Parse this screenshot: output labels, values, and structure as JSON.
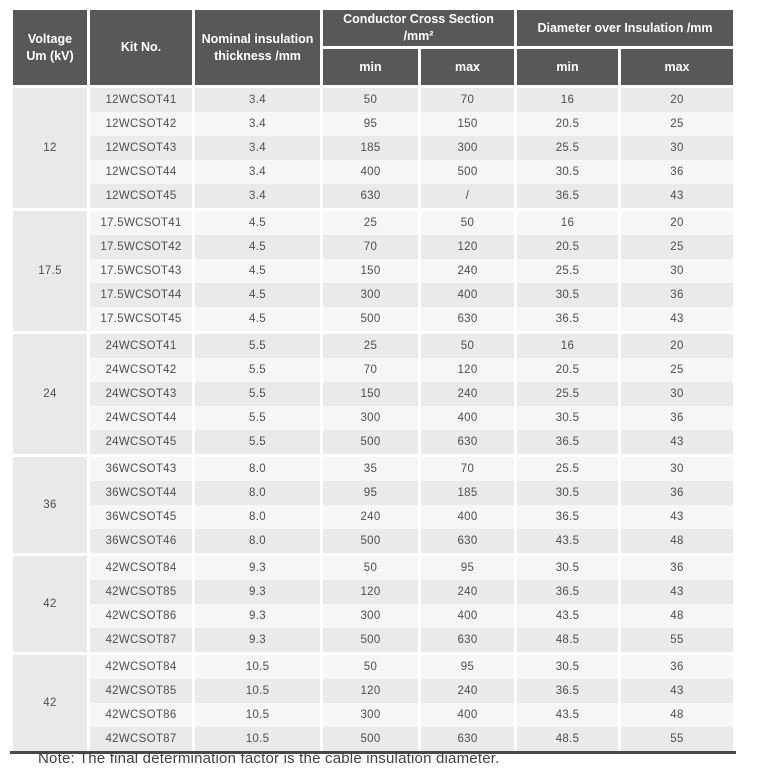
{
  "table": {
    "headers": {
      "voltage": "Voltage\nUm (kV)",
      "kit": "Kit No.",
      "thickness": "Nominal insulation\nthickness /mm",
      "conductor_cross_section": "Conductor Cross Section /mm²",
      "diameter_over_insulation": "Diameter over Insulation /mm",
      "min": "min",
      "max": "max"
    },
    "groups": [
      {
        "voltage": "12",
        "rows": [
          {
            "kit": "12WCSOT41",
            "thickness": "3.4",
            "ccs_min": "50",
            "ccs_max": "70",
            "doi_min": "16",
            "doi_max": "20"
          },
          {
            "kit": "12WCSOT42",
            "thickness": "3.4",
            "ccs_min": "95",
            "ccs_max": "150",
            "doi_min": "20.5",
            "doi_max": "25"
          },
          {
            "kit": "12WCSOT43",
            "thickness": "3.4",
            "ccs_min": "185",
            "ccs_max": "300",
            "doi_min": "25.5",
            "doi_max": "30"
          },
          {
            "kit": "12WCSOT44",
            "thickness": "3.4",
            "ccs_min": "400",
            "ccs_max": "500",
            "doi_min": "30.5",
            "doi_max": "36"
          },
          {
            "kit": "12WCSOT45",
            "thickness": "3.4",
            "ccs_min": "630",
            "ccs_max": "/",
            "doi_min": "36.5",
            "doi_max": "43"
          }
        ]
      },
      {
        "voltage": "17.5",
        "rows": [
          {
            "kit": "17.5WCSOT41",
            "thickness": "4.5",
            "ccs_min": "25",
            "ccs_max": "50",
            "doi_min": "16",
            "doi_max": "20"
          },
          {
            "kit": "17.5WCSOT42",
            "thickness": "4.5",
            "ccs_min": "70",
            "ccs_max": "120",
            "doi_min": "20.5",
            "doi_max": "25"
          },
          {
            "kit": "17.5WCSOT43",
            "thickness": "4.5",
            "ccs_min": "150",
            "ccs_max": "240",
            "doi_min": "25.5",
            "doi_max": "30"
          },
          {
            "kit": "17.5WCSOT44",
            "thickness": "4.5",
            "ccs_min": "300",
            "ccs_max": "400",
            "doi_min": "30.5",
            "doi_max": "36"
          },
          {
            "kit": "17.5WCSOT45",
            "thickness": "4.5",
            "ccs_min": "500",
            "ccs_max": "630",
            "doi_min": "36.5",
            "doi_max": "43"
          }
        ]
      },
      {
        "voltage": "24",
        "rows": [
          {
            "kit": "24WCSOT41",
            "thickness": "5.5",
            "ccs_min": "25",
            "ccs_max": "50",
            "doi_min": "16",
            "doi_max": "20"
          },
          {
            "kit": "24WCSOT42",
            "thickness": "5.5",
            "ccs_min": "70",
            "ccs_max": "120",
            "doi_min": "20.5",
            "doi_max": "25"
          },
          {
            "kit": "24WCSOT43",
            "thickness": "5.5",
            "ccs_min": "150",
            "ccs_max": "240",
            "doi_min": "25.5",
            "doi_max": "30"
          },
          {
            "kit": "24WCSOT44",
            "thickness": "5.5",
            "ccs_min": "300",
            "ccs_max": "400",
            "doi_min": "30.5",
            "doi_max": "36"
          },
          {
            "kit": "24WCSOT45",
            "thickness": "5.5",
            "ccs_min": "500",
            "ccs_max": "630",
            "doi_min": "36.5",
            "doi_max": "43"
          }
        ]
      },
      {
        "voltage": "36",
        "rows": [
          {
            "kit": "36WCSOT43",
            "thickness": "8.0",
            "ccs_min": "35",
            "ccs_max": "70",
            "doi_min": "25.5",
            "doi_max": "30"
          },
          {
            "kit": "36WCSOT44",
            "thickness": "8.0",
            "ccs_min": "95",
            "ccs_max": "185",
            "doi_min": "30.5",
            "doi_max": "36"
          },
          {
            "kit": "36WCSOT45",
            "thickness": "8.0",
            "ccs_min": "240",
            "ccs_max": "400",
            "doi_min": "36.5",
            "doi_max": "43"
          },
          {
            "kit": "36WCSOT46",
            "thickness": "8.0",
            "ccs_min": "500",
            "ccs_max": "630",
            "doi_min": "43.5",
            "doi_max": "48"
          }
        ]
      },
      {
        "voltage": "42",
        "rows": [
          {
            "kit": "42WCSOT84",
            "thickness": "9.3",
            "ccs_min": "50",
            "ccs_max": "95",
            "doi_min": "30.5",
            "doi_max": "36"
          },
          {
            "kit": "42WCSOT85",
            "thickness": "9.3",
            "ccs_min": "120",
            "ccs_max": "240",
            "doi_min": "36.5",
            "doi_max": "43"
          },
          {
            "kit": "42WCSOT86",
            "thickness": "9.3",
            "ccs_min": "300",
            "ccs_max": "400",
            "doi_min": "43.5",
            "doi_max": "48"
          },
          {
            "kit": "42WCSOT87",
            "thickness": "9.3",
            "ccs_min": "500",
            "ccs_max": "630",
            "doi_min": "48.5",
            "doi_max": "55"
          }
        ]
      },
      {
        "voltage": "42",
        "rows": [
          {
            "kit": "42WCSOT84",
            "thickness": "10.5",
            "ccs_min": "50",
            "ccs_max": "95",
            "doi_min": "30.5",
            "doi_max": "36"
          },
          {
            "kit": "42WCSOT85",
            "thickness": "10.5",
            "ccs_min": "120",
            "ccs_max": "240",
            "doi_min": "36.5",
            "doi_max": "43"
          },
          {
            "kit": "42WCSOT86",
            "thickness": "10.5",
            "ccs_min": "300",
            "ccs_max": "400",
            "doi_min": "43.5",
            "doi_max": "48"
          },
          {
            "kit": "42WCSOT87",
            "thickness": "10.5",
            "ccs_min": "500",
            "ccs_max": "630",
            "doi_min": "48.5",
            "doi_max": "55"
          }
        ]
      }
    ]
  },
  "note": "Note: The final determination factor is the cable insulation diameter.",
  "colors": {
    "header_bg": "#595757",
    "header_text": "#ffffff",
    "row_gray": "#eaeaea",
    "row_light": "#f6f6f6",
    "voltage_cell_bg": "#e9e9e9",
    "cell_text": "#4f4e50",
    "bottom_rule": "#4a4848"
  }
}
